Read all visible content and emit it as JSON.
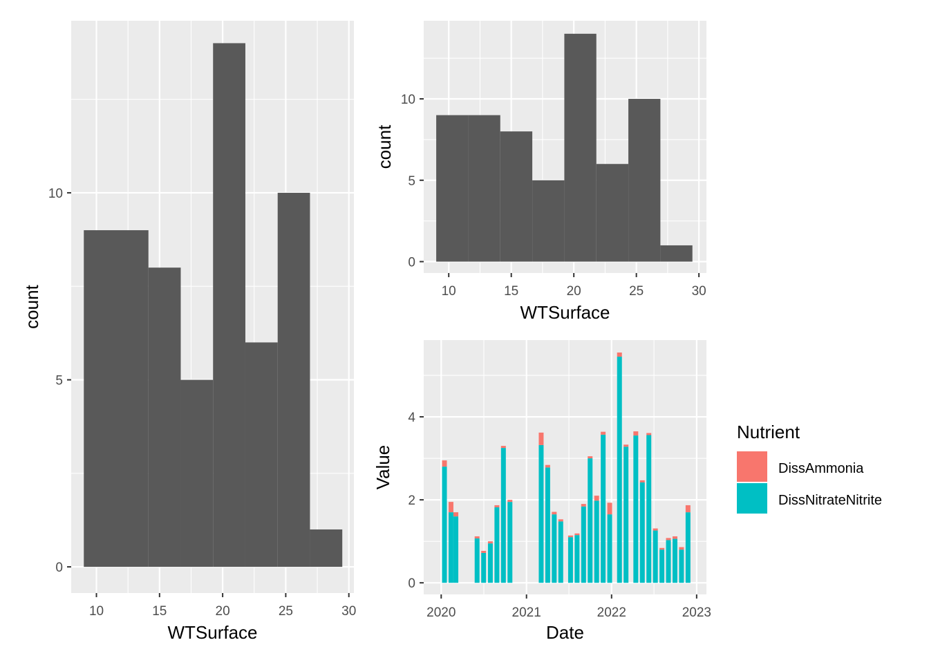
{
  "colors": {
    "panel_bg": "#ebebeb",
    "grid": "#ffffff",
    "bar_fill": "#595959",
    "ammonia": "#f8766d",
    "nitrate": "#00bfc4"
  },
  "chart_data": [
    {
      "type": "bar",
      "id": "hist-left",
      "xlabel": "WTSurface",
      "ylabel": "count",
      "xlim": [
        8.0,
        30.4
      ],
      "ylim": [
        -0.7,
        14.6
      ],
      "x_ticks": [
        10,
        15,
        20,
        25,
        30
      ],
      "y_ticks": [
        0,
        5,
        10
      ],
      "bins": [
        {
          "x0": 9.0,
          "x1": 11.56,
          "count": 9
        },
        {
          "x0": 11.56,
          "x1": 14.12,
          "count": 9
        },
        {
          "x0": 14.12,
          "x1": 16.68,
          "count": 8
        },
        {
          "x0": 16.68,
          "x1": 19.24,
          "count": 5
        },
        {
          "x0": 19.24,
          "x1": 21.8,
          "count": 14
        },
        {
          "x0": 21.8,
          "x1": 24.36,
          "count": 6
        },
        {
          "x0": 24.36,
          "x1": 26.92,
          "count": 10
        },
        {
          "x0": 26.92,
          "x1": 29.48,
          "count": 1
        }
      ]
    },
    {
      "type": "bar",
      "id": "hist-top-right",
      "xlabel": "WTSurface",
      "ylabel": "count",
      "xlim": [
        8.0,
        30.6
      ],
      "ylim": [
        -0.7,
        14.8
      ],
      "x_ticks": [
        10,
        15,
        20,
        25,
        30
      ],
      "y_ticks": [
        0,
        5,
        10
      ],
      "bins": [
        {
          "x0": 9.0,
          "x1": 11.56,
          "count": 9
        },
        {
          "x0": 11.56,
          "x1": 14.12,
          "count": 9
        },
        {
          "x0": 14.12,
          "x1": 16.68,
          "count": 8
        },
        {
          "x0": 16.68,
          "x1": 19.24,
          "count": 5
        },
        {
          "x0": 19.24,
          "x1": 21.8,
          "count": 14
        },
        {
          "x0": 21.8,
          "x1": 24.36,
          "count": 6
        },
        {
          "x0": 24.36,
          "x1": 26.92,
          "count": 10
        },
        {
          "x0": 26.92,
          "x1": 29.48,
          "count": 1
        }
      ]
    },
    {
      "type": "bar",
      "id": "stacked-bottom-right",
      "xlabel": "Date",
      "ylabel": "Value",
      "stacked": true,
      "xlim": [
        "2019-10-18",
        "2023-02-12"
      ],
      "ylim": [
        -0.28,
        5.85
      ],
      "x_ticks": [
        "2020",
        "2021",
        "2022",
        "2023"
      ],
      "y_ticks": [
        0,
        2,
        4
      ],
      "legend": {
        "title": "Nutrient",
        "position": "right",
        "entries": [
          {
            "name": "DissAmmonia",
            "color": "#f8766d"
          },
          {
            "name": "DissNitrateNitrite",
            "color": "#00bfc4"
          }
        ]
      },
      "series": [
        {
          "name": "DissNitrateNitrite",
          "color": "#00bfc4"
        },
        {
          "name": "DissAmmonia",
          "color": "#f8766d"
        }
      ],
      "points": [
        {
          "date": "2020-01-15",
          "DissNitrateNitrite": 2.8,
          "DissAmmonia": 0.15
        },
        {
          "date": "2020-02-12",
          "DissNitrateNitrite": 1.7,
          "DissAmmonia": 0.25
        },
        {
          "date": "2020-03-04",
          "DissNitrateNitrite": 1.6,
          "DissAmmonia": 0.1
        },
        {
          "date": "2020-06-03",
          "DissNitrateNitrite": 1.07,
          "DissAmmonia": 0.05
        },
        {
          "date": "2020-07-01",
          "DissNitrateNitrite": 0.72,
          "DissAmmonia": 0.05
        },
        {
          "date": "2020-07-30",
          "DissNitrateNitrite": 0.95,
          "DissAmmonia": 0.05
        },
        {
          "date": "2020-08-27",
          "DissNitrateNitrite": 1.82,
          "DissAmmonia": 0.05
        },
        {
          "date": "2020-09-24",
          "DissNitrateNitrite": 3.25,
          "DissAmmonia": 0.05
        },
        {
          "date": "2020-10-22",
          "DissNitrateNitrite": 1.95,
          "DissAmmonia": 0.05
        },
        {
          "date": "2021-03-05",
          "DissNitrateNitrite": 3.32,
          "DissAmmonia": 0.3
        },
        {
          "date": "2021-04-02",
          "DissNitrateNitrite": 2.78,
          "DissAmmonia": 0.06
        },
        {
          "date": "2021-04-30",
          "DissNitrateNitrite": 1.65,
          "DissAmmonia": 0.06
        },
        {
          "date": "2021-05-28",
          "DissNitrateNitrite": 1.48,
          "DissAmmonia": 0.05
        },
        {
          "date": "2021-07-09",
          "DissNitrateNitrite": 1.1,
          "DissAmmonia": 0.04
        },
        {
          "date": "2021-08-06",
          "DissNitrateNitrite": 1.15,
          "DissAmmonia": 0.04
        },
        {
          "date": "2021-09-03",
          "DissNitrateNitrite": 1.84,
          "DissAmmonia": 0.06
        },
        {
          "date": "2021-10-01",
          "DissNitrateNitrite": 3.0,
          "DissAmmonia": 0.05
        },
        {
          "date": "2021-10-29",
          "DissNitrateNitrite": 1.98,
          "DissAmmonia": 0.12
        },
        {
          "date": "2021-11-26",
          "DissNitrateNitrite": 3.57,
          "DissAmmonia": 0.07
        },
        {
          "date": "2021-12-24",
          "DissNitrateNitrite": 1.65,
          "DissAmmonia": 0.28
        },
        {
          "date": "2022-02-04",
          "DissNitrateNitrite": 5.45,
          "DissAmmonia": 0.1
        },
        {
          "date": "2022-03-04",
          "DissNitrateNitrite": 3.28,
          "DissAmmonia": 0.05
        },
        {
          "date": "2022-04-15",
          "DissNitrateNitrite": 3.55,
          "DissAmmonia": 0.1
        },
        {
          "date": "2022-05-13",
          "DissNitrateNitrite": 2.42,
          "DissAmmonia": 0.05
        },
        {
          "date": "2022-06-10",
          "DissNitrateNitrite": 3.56,
          "DissAmmonia": 0.05
        },
        {
          "date": "2022-07-08",
          "DissNitrateNitrite": 1.26,
          "DissAmmonia": 0.05
        },
        {
          "date": "2022-08-05",
          "DissNitrateNitrite": 0.8,
          "DissAmmonia": 0.04
        },
        {
          "date": "2022-09-02",
          "DissNitrateNitrite": 1.03,
          "DissAmmonia": 0.05
        },
        {
          "date": "2022-09-30",
          "DissNitrateNitrite": 1.06,
          "DissAmmonia": 0.06
        },
        {
          "date": "2022-10-28",
          "DissNitrateNitrite": 0.8,
          "DissAmmonia": 0.06
        },
        {
          "date": "2022-11-25",
          "DissNitrateNitrite": 1.7,
          "DissAmmonia": 0.17
        }
      ]
    }
  ]
}
